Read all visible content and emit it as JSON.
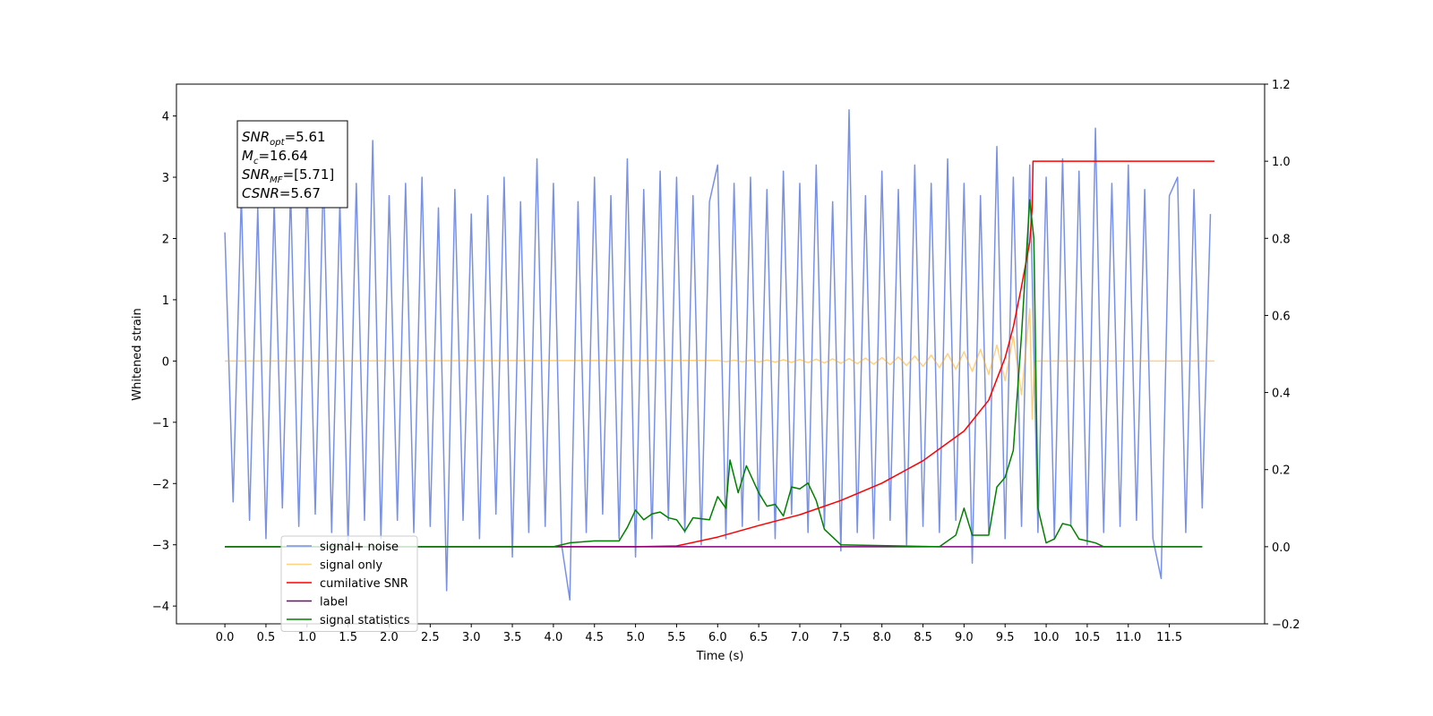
{
  "chart_data": {
    "type": "line",
    "xlabel": "Time (s)",
    "ylabel": "Whitened strain",
    "xlim": [
      -0.59,
      12.66
    ],
    "ylim": [
      -4.29,
      4.52
    ],
    "y2lim": [
      -0.2,
      1.2
    ],
    "xticks": [
      {
        "value": 0,
        "label": "0.0"
      },
      0.5,
      {
        "value": 1,
        "label": "1.0"
      },
      1.5,
      {
        "value": 2,
        "label": "2.0"
      },
      2.5,
      {
        "value": 3,
        "label": "3.0"
      },
      3.5,
      {
        "value": 4,
        "label": "4.0"
      },
      4.5,
      {
        "value": 5,
        "label": "5.0"
      },
      5.5,
      {
        "value": 6,
        "label": "6.0"
      },
      6.5,
      {
        "value": 7,
        "label": "7.0"
      },
      7.5,
      {
        "value": 8,
        "label": "8.0"
      },
      8.5,
      {
        "value": 9,
        "label": "9.0"
      },
      9.5,
      {
        "value": 10,
        "label": "10.0"
      },
      10.5,
      {
        "value": 11,
        "label": "11.0"
      },
      11.5
    ],
    "yticks": [
      {
        "value": -4,
        "label": "−4"
      },
      {
        "value": -3,
        "label": "−3"
      },
      {
        "value": -2,
        "label": "−2"
      },
      {
        "value": -1,
        "label": "−1"
      },
      0,
      1,
      2,
      3,
      4
    ],
    "y2ticks": [
      {
        "value": -0.2,
        "label": "−0.2"
      },
      {
        "value": 0,
        "label": "0.0"
      },
      0.2,
      0.4,
      0.6,
      0.8,
      {
        "value": 1,
        "label": "1.0"
      },
      1.2
    ],
    "annotation": [
      [
        "SNR",
        "opt",
        "=5.61"
      ],
      [
        "M",
        "c",
        "=16.64"
      ],
      [
        "SNR",
        "MF",
        "=[5.71]"
      ],
      [
        "CSNR",
        "=5.67"
      ]
    ],
    "legend": "lower left",
    "series": [
      {
        "name": "signal+ noise",
        "color": "#7891e6",
        "x": [
          0,
          0.1,
          0.2,
          0.3,
          0.4,
          0.5,
          0.6,
          0.7,
          0.8,
          0.9,
          1.0,
          1.1,
          1.2,
          1.3,
          1.4,
          1.5,
          1.6,
          1.7,
          1.8,
          1.9,
          2.0,
          2.1,
          2.2,
          2.3,
          2.4,
          2.5,
          2.6,
          2.7,
          2.8,
          2.9,
          3.0,
          3.1,
          3.2,
          3.3,
          3.4,
          3.5,
          3.6,
          3.7,
          3.8,
          3.9,
          4.0,
          4.1,
          4.2,
          4.3,
          4.4,
          4.5,
          4.6,
          4.7,
          4.8,
          4.9,
          5.0,
          5.1,
          5.2,
          5.3,
          5.4,
          5.5,
          5.6,
          5.7,
          5.8,
          5.9,
          6.0,
          6.1,
          6.2,
          6.3,
          6.4,
          6.5,
          6.6,
          6.7,
          6.8,
          6.9,
          7.0,
          7.1,
          7.2,
          7.3,
          7.4,
          7.5,
          7.6,
          7.7,
          7.8,
          7.9,
          8.0,
          8.1,
          8.2,
          8.3,
          8.4,
          8.5,
          8.6,
          8.7,
          8.8,
          8.9,
          9.0,
          9.1,
          9.2,
          9.3,
          9.4,
          9.5,
          9.6,
          9.7,
          9.8,
          9.9,
          10.0,
          10.1,
          10.2,
          10.3,
          10.4,
          10.5,
          10.6,
          10.7,
          10.8,
          10.9,
          11.0,
          11.1,
          11.2,
          11.3,
          11.4,
          11.5,
          11.6,
          11.7,
          11.8,
          11.9,
          12.0
        ],
        "values": [
          2.1,
          -2.3,
          2.7,
          -2.6,
          2.5,
          -2.9,
          2.6,
          -2.4,
          2.8,
          -2.7,
          2.9,
          -2.5,
          3.1,
          -2.8,
          2.6,
          -3.0,
          2.9,
          -2.6,
          3.6,
          -2.9,
          2.7,
          -2.6,
          2.9,
          -2.8,
          3.0,
          -2.7,
          2.5,
          -3.75,
          2.8,
          -2.6,
          2.4,
          -2.9,
          2.7,
          -2.5,
          3.0,
          -3.2,
          2.6,
          -2.8,
          3.3,
          -2.7,
          2.9,
          -3.0,
          -3.9,
          2.6,
          -2.8,
          3.0,
          -2.5,
          2.7,
          -2.9,
          3.3,
          -3.2,
          2.8,
          -2.9,
          3.1,
          -2.6,
          3.0,
          -2.8,
          2.7,
          -3.0,
          2.6,
          3.2,
          -2.9,
          2.9,
          -2.7,
          3.0,
          -2.6,
          2.8,
          -2.9,
          3.1,
          -2.5,
          2.9,
          -2.8,
          3.2,
          -2.7,
          2.6,
          -3.1,
          4.1,
          -2.8,
          2.7,
          -2.9,
          3.1,
          -2.6,
          2.8,
          -3.0,
          3.2,
          -2.7,
          2.9,
          -2.8,
          3.3,
          -2.6,
          2.9,
          -3.3,
          2.7,
          -2.8,
          3.5,
          -2.9,
          3.0,
          -2.7,
          3.2,
          -2.8,
          3.0,
          -2.9,
          3.3,
          -2.7,
          3.1,
          -3.0,
          3.8,
          -2.8,
          2.9,
          -2.7,
          3.2,
          -2.6,
          2.8,
          -2.9,
          -3.55,
          2.7,
          3.0,
          -2.8,
          2.8,
          -2.4,
          2.4
        ]
      },
      {
        "name": "signal only",
        "color": "#ffa500",
        "alpha": 0.5,
        "x": [
          0,
          6.0,
          6.1,
          6.2,
          6.3,
          6.4,
          6.5,
          6.6,
          6.7,
          6.8,
          6.9,
          7.0,
          7.1,
          7.2,
          7.3,
          7.4,
          7.5,
          7.6,
          7.7,
          7.8,
          7.9,
          8.0,
          8.1,
          8.2,
          8.3,
          8.4,
          8.5,
          8.6,
          8.7,
          8.8,
          8.9,
          9.0,
          9.1,
          9.2,
          9.3,
          9.4,
          9.5,
          9.6,
          9.7,
          9.8,
          9.83,
          9.86,
          12.05
        ],
        "values": [
          0,
          0.01,
          -0.01,
          0.012,
          -0.012,
          0.014,
          -0.015,
          0.016,
          -0.018,
          0.02,
          -0.022,
          0.025,
          -0.027,
          0.03,
          -0.032,
          0.035,
          -0.038,
          0.04,
          -0.044,
          0.048,
          -0.052,
          0.056,
          -0.06,
          0.066,
          -0.072,
          0.08,
          -0.088,
          0.097,
          -0.107,
          0.12,
          -0.135,
          0.15,
          -0.17,
          0.19,
          -0.22,
          0.26,
          -0.32,
          0.4,
          -0.55,
          0.85,
          -0.95,
          0,
          0
        ]
      },
      {
        "name": "cumilative SNR",
        "color": "#ff0000",
        "axis": "y2",
        "x": [
          0,
          5.0,
          5.5,
          6.0,
          6.5,
          7.0,
          7.5,
          8.0,
          8.5,
          9.0,
          9.3,
          9.5,
          9.6,
          9.7,
          9.8,
          9.83,
          9.84,
          12.05
        ],
        "values": [
          0,
          0,
          0.002,
          0.025,
          0.055,
          0.083,
          0.12,
          0.165,
          0.223,
          0.3,
          0.38,
          0.49,
          0.57,
          0.675,
          0.79,
          0.88,
          1.0,
          1.0
        ]
      },
      {
        "name": "label",
        "color": "#800080",
        "axis": "y2",
        "x": [
          0,
          11.9
        ],
        "values": [
          0,
          0
        ]
      },
      {
        "name": "signal statistics",
        "color": "#008000",
        "axis": "y2",
        "x": [
          0,
          4.0,
          4.2,
          4.5,
          4.8,
          4.9,
          5.0,
          5.1,
          5.2,
          5.3,
          5.4,
          5.5,
          5.6,
          5.7,
          5.9,
          6.0,
          6.1,
          6.15,
          6.25,
          6.35,
          6.5,
          6.6,
          6.7,
          6.8,
          6.9,
          7.0,
          7.1,
          7.2,
          7.3,
          7.5,
          8.7,
          8.9,
          9.0,
          9.1,
          9.3,
          9.4,
          9.5,
          9.6,
          9.7,
          9.8,
          9.85,
          9.9,
          10.0,
          10.1,
          10.2,
          10.3,
          10.4,
          10.5,
          10.6,
          10.7,
          11.9
        ],
        "values": [
          0,
          0,
          0.01,
          0.015,
          0.015,
          0.05,
          0.095,
          0.07,
          0.085,
          0.09,
          0.075,
          0.07,
          0.04,
          0.075,
          0.07,
          0.13,
          0.1,
          0.225,
          0.14,
          0.21,
          0.14,
          0.105,
          0.11,
          0.08,
          0.155,
          0.15,
          0.165,
          0.12,
          0.045,
          0.005,
          0,
          0.03,
          0.1,
          0.03,
          0.03,
          0.155,
          0.18,
          0.25,
          0.55,
          0.9,
          0.8,
          0.1,
          0.01,
          0.02,
          0.06,
          0.055,
          0.02,
          0.015,
          0.01,
          0,
          0
        ]
      }
    ]
  }
}
